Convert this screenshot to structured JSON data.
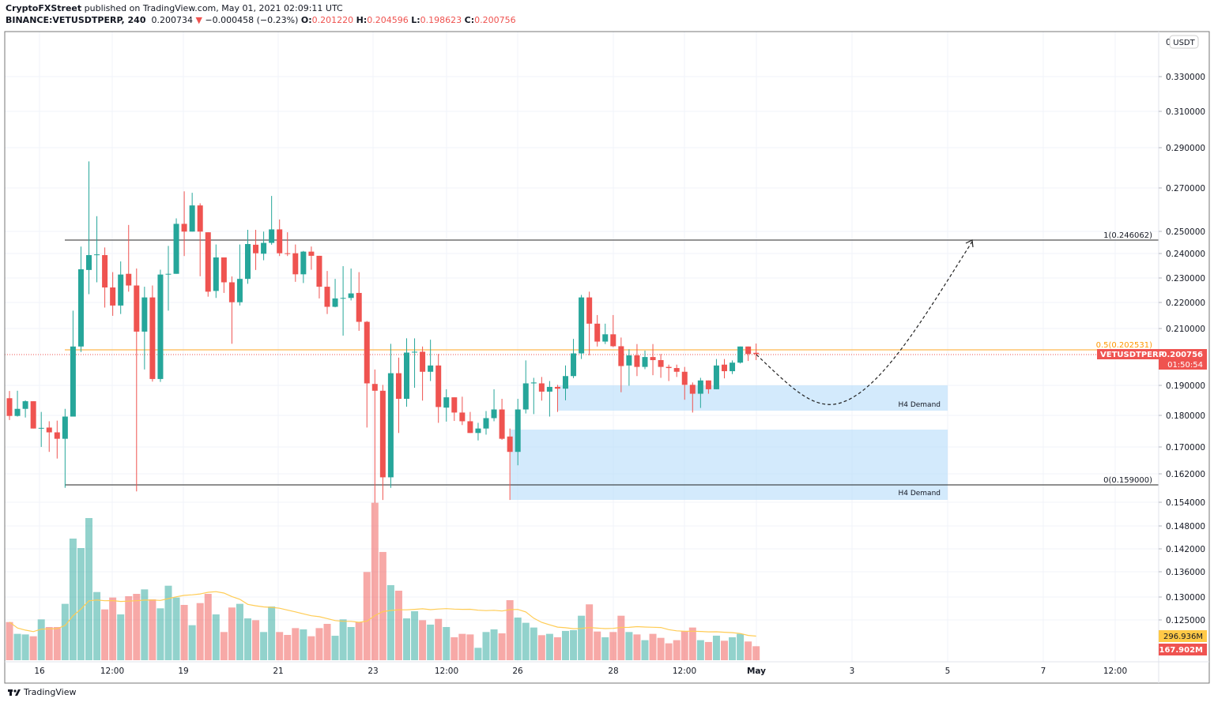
{
  "header": {
    "author": "CryptoFXStreet",
    "published": " published on TradingView.com, May 01, 2021 02:09:11 UTC",
    "symbol": "BINANCE:VETUSDTPERP, 240",
    "last": "0.200734",
    "change": "−0.000458 (−0.23%)",
    "o_label": "O:",
    "o": "0.201220",
    "h_label": "H:",
    "h": "0.204596",
    "l_label": "L:",
    "l": "0.198623",
    "c_label": "C:",
    "c": "0.200756"
  },
  "colors": {
    "up": "#26a69a",
    "down": "#ef5350",
    "fib_mid": "#ff9800",
    "demand": "#bbdefb",
    "ma": "#ffcc55"
  },
  "price_axis": {
    "currency": "USDT",
    "ticks": [
      "0.330000",
      "0.310000",
      "0.290000",
      "0.270000",
      "0.250000",
      "0.240000",
      "0.230000",
      "0.220000",
      "0.210000",
      "0.190000",
      "0.180000",
      "0.170000",
      "0.162000",
      "0.154000",
      "0.148000",
      "0.142000",
      "0.136000",
      "0.130000",
      "0.125000"
    ],
    "top_partial": "0.",
    "current_symbol": "VETUSDTPERP",
    "current_price": "0.200756",
    "countdown": "01:50:54",
    "volume_ma_label": "296.936M",
    "volume_label": "167.902M"
  },
  "time_axis": [
    "16",
    "12:00",
    "19",
    "21",
    "23",
    "12:00",
    "26",
    "28",
    "12:00",
    "May",
    "3",
    "5",
    "7",
    "12:00"
  ],
  "annotations": {
    "fib_1": "1(0.246062)",
    "fib_05": "0.5(0.202531)",
    "fib_0": "0(0.159000)",
    "demand_1": "H4 Demand",
    "demand_2": "H4 Demand"
  },
  "footer": {
    "brand": "TradingView"
  },
  "chart_data": {
    "type": "candlestick",
    "interval": "240",
    "candles": [
      [
        0.1855,
        0.1879,
        0.1784,
        0.1797
      ],
      [
        0.1797,
        0.188,
        0.1795,
        0.182
      ],
      [
        0.182,
        0.1848,
        0.1792,
        0.1845
      ],
      [
        0.1845,
        0.1845,
        0.1757,
        0.1757
      ],
      [
        0.1757,
        0.181,
        0.17,
        0.1759
      ],
      [
        0.176,
        0.178,
        0.1685,
        0.1745
      ],
      [
        0.1745,
        0.1782,
        0.1665,
        0.1725
      ],
      [
        0.1725,
        0.182,
        0.158,
        0.1795
      ],
      [
        0.1795,
        0.217,
        0.1795,
        0.2035
      ],
      [
        0.2035,
        0.2434,
        0.2015,
        0.2337
      ],
      [
        0.2334,
        0.2835,
        0.2235,
        0.2397
      ],
      [
        0.2397,
        0.257,
        0.2283,
        0.24
      ],
      [
        0.2397,
        0.243,
        0.2182,
        0.2262
      ],
      [
        0.2262,
        0.2325,
        0.215,
        0.219
      ],
      [
        0.219,
        0.237,
        0.2157,
        0.2315
      ],
      [
        0.2318,
        0.253,
        0.2245,
        0.227
      ],
      [
        0.227,
        0.234,
        0.157,
        0.209
      ],
      [
        0.209,
        0.2265,
        0.1953,
        0.2222
      ],
      [
        0.2222,
        0.227,
        0.1911,
        0.192
      ],
      [
        0.192,
        0.2335,
        0.191,
        0.2315
      ],
      [
        0.2315,
        0.2437,
        0.217,
        0.2318
      ],
      [
        0.2318,
        0.256,
        0.2318,
        0.2535
      ],
      [
        0.2535,
        0.2687,
        0.2393,
        0.25
      ],
      [
        0.25,
        0.268,
        0.25,
        0.262
      ],
      [
        0.262,
        0.263,
        0.2308,
        0.25
      ],
      [
        0.2497,
        0.2497,
        0.2225,
        0.2245
      ],
      [
        0.2248,
        0.2443,
        0.222,
        0.2387
      ],
      [
        0.2387,
        0.2387,
        0.224,
        0.2283
      ],
      [
        0.2283,
        0.2307,
        0.2045,
        0.2203
      ],
      [
        0.2203,
        0.2443,
        0.219,
        0.2297
      ],
      [
        0.2297,
        0.2508,
        0.2277,
        0.2445
      ],
      [
        0.2442,
        0.2508,
        0.2334,
        0.2405
      ],
      [
        0.2403,
        0.25,
        0.2375,
        0.245
      ],
      [
        0.245,
        0.2665,
        0.2442,
        0.251
      ],
      [
        0.251,
        0.2555,
        0.2393,
        0.2405
      ],
      [
        0.2405,
        0.2497,
        0.2393,
        0.2403
      ],
      [
        0.2405,
        0.2443,
        0.2285,
        0.2316
      ],
      [
        0.2316,
        0.2415,
        0.228,
        0.2412
      ],
      [
        0.2412,
        0.2434,
        0.2335,
        0.2394
      ],
      [
        0.2394,
        0.2394,
        0.2218,
        0.2265
      ],
      [
        0.2265,
        0.233,
        0.2157,
        0.2185
      ],
      [
        0.2185,
        0.2297,
        0.2183,
        0.2218
      ],
      [
        0.2217,
        0.235,
        0.2075,
        0.222
      ],
      [
        0.222,
        0.234,
        0.221,
        0.2238
      ],
      [
        0.224,
        0.2325,
        0.2093,
        0.2127
      ],
      [
        0.2127,
        0.213,
        0.176,
        0.1905
      ],
      [
        0.1903,
        0.1953,
        0.1538,
        0.188
      ],
      [
        0.188,
        0.19,
        0.1546,
        0.161
      ],
      [
        0.161,
        0.2045,
        0.158,
        0.194
      ],
      [
        0.194,
        0.1995,
        0.1743,
        0.1853
      ],
      [
        0.1853,
        0.2065,
        0.1827,
        0.2013
      ],
      [
        0.2013,
        0.2065,
        0.189,
        0.2016
      ],
      [
        0.2016,
        0.2035,
        0.1847,
        0.1945
      ],
      [
        0.1945,
        0.206,
        0.1913,
        0.1967
      ],
      [
        0.1967,
        0.2008,
        0.1775,
        0.1826
      ],
      [
        0.1824,
        0.1885,
        0.1779,
        0.1858
      ],
      [
        0.1858,
        0.1858,
        0.1781,
        0.1808
      ],
      [
        0.1808,
        0.186,
        0.1768,
        0.178
      ],
      [
        0.178,
        0.181,
        0.1743,
        0.1743
      ],
      [
        0.1743,
        0.1775,
        0.172,
        0.1757
      ],
      [
        0.1757,
        0.1813,
        0.1738,
        0.179
      ],
      [
        0.179,
        0.1885,
        0.178,
        0.1818
      ],
      [
        0.1818,
        0.1853,
        0.1722,
        0.1725
      ],
      [
        0.1732,
        0.1757,
        0.1546,
        0.1685
      ],
      [
        0.1685,
        0.1853,
        0.1645,
        0.1818
      ],
      [
        0.1818,
        0.1985,
        0.1805,
        0.1905
      ],
      [
        0.1905,
        0.1924,
        0.1803,
        0.1908
      ],
      [
        0.1905,
        0.1927,
        0.1847,
        0.1877
      ],
      [
        0.1877,
        0.1913,
        0.1795,
        0.1893
      ],
      [
        0.1893,
        0.19,
        0.181,
        0.1887
      ],
      [
        0.1887,
        0.1967,
        0.1848,
        0.193
      ],
      [
        0.193,
        0.2063,
        0.1923,
        0.201
      ],
      [
        0.201,
        0.2232,
        0.199,
        0.2222
      ],
      [
        0.2222,
        0.2245,
        0.2003,
        0.212
      ],
      [
        0.212,
        0.2153,
        0.2035,
        0.2053
      ],
      [
        0.2053,
        0.212,
        0.2044,
        0.208
      ],
      [
        0.208,
        0.2153,
        0.2033,
        0.2036
      ],
      [
        0.2036,
        0.2068,
        0.1875,
        0.1965
      ],
      [
        0.1967,
        0.2025,
        0.1897,
        0.2003
      ],
      [
        0.2003,
        0.2044,
        0.193,
        0.1962
      ],
      [
        0.1962,
        0.202,
        0.1954,
        0.1997
      ],
      [
        0.1997,
        0.2044,
        0.1933,
        0.1986
      ],
      [
        0.1986,
        0.2008,
        0.1924,
        0.1962
      ],
      [
        0.1962,
        0.197,
        0.1913,
        0.1958
      ],
      [
        0.1958,
        0.197,
        0.1927,
        0.1945
      ],
      [
        0.1945,
        0.1962,
        0.185,
        0.19
      ],
      [
        0.19,
        0.1908,
        0.1808,
        0.187
      ],
      [
        0.187,
        0.1924,
        0.1823,
        0.1915
      ],
      [
        0.1915,
        0.1915,
        0.187,
        0.1885
      ],
      [
        0.1885,
        0.199,
        0.1885,
        0.1967
      ],
      [
        0.197,
        0.199,
        0.1922,
        0.1947
      ],
      [
        0.1947,
        0.1985,
        0.1937,
        0.1977
      ],
      [
        0.1977,
        0.2035,
        0.1974,
        0.2035
      ],
      [
        0.2035,
        0.2035,
        0.1983,
        0.2008
      ],
      [
        0.20122,
        0.204596,
        0.198623,
        0.200756
      ]
    ],
    "volumes_M": [
      459,
      317,
      310,
      288,
      491,
      399,
      399,
      678,
      1463,
      1349,
      1710,
      820,
      611,
      754,
      551,
      770,
      798,
      852,
      732,
      624,
      896,
      754,
      665,
      421,
      687,
      798,
      551,
      339,
      634,
      678,
      503,
      481,
      339,
      646,
      339,
      304,
      386,
      371,
      288,
      386,
      437,
      294,
      491,
      399,
      459,
      1061,
      1894,
      1302,
      903,
      836,
      503,
      589,
      481,
      428,
      497,
      399,
      276,
      317,
      310,
      149,
      339,
      371,
      323,
      722,
      513,
      450,
      393,
      301,
      317,
      276,
      352,
      361,
      535,
      672,
      345,
      276,
      339,
      535,
      339,
      310,
      241,
      317,
      269,
      203,
      241,
      352,
      393,
      241,
      219,
      295,
      234,
      276,
      317,
      225,
      167.902
    ],
    "volume_ma_M": 296.936,
    "levels": {
      "fib_1": 0.246062,
      "fib_05": 0.202531,
      "fib_0": 0.159,
      "current": 0.200756
    },
    "demand_zones": [
      [
        0.182,
        0.19
      ],
      [
        0.154,
        0.176
      ]
    ],
    "projection": "dashed path dipping to ~0.184 then rising to ~0.246"
  }
}
